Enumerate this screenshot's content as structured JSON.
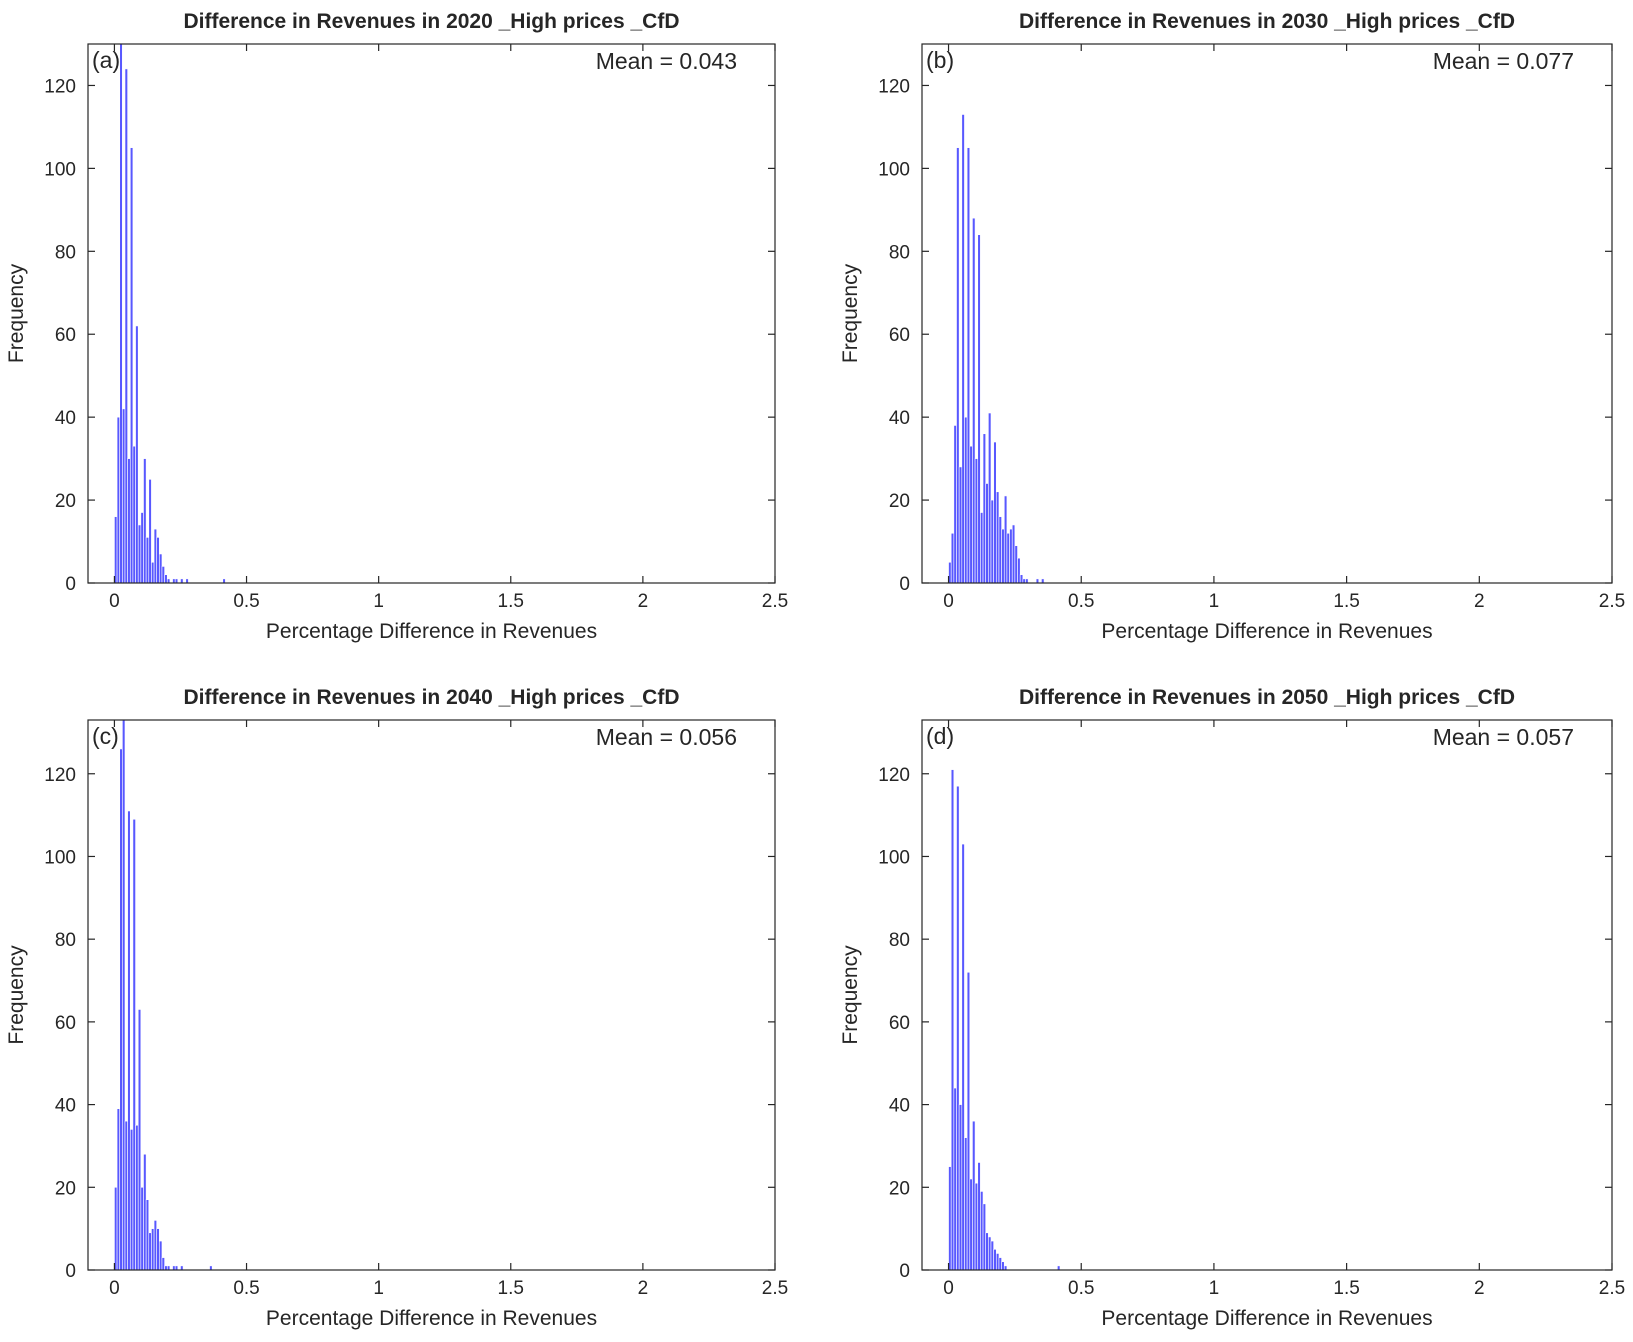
{
  "chart_data": [
    {
      "type": "bar",
      "panel_label": "(a)",
      "title": "Difference in Revenues in 2020 _High prices _CfD",
      "annotation": "Mean = 0.043",
      "xlabel": "Percentage Difference in Revenues",
      "ylabel": "Frequency",
      "xlim": [
        -0.1,
        2.5
      ],
      "ylim": [
        0,
        130
      ],
      "xticks": [
        "0",
        "0.5",
        "1",
        "1.5",
        "2",
        "2.5"
      ],
      "yticks": [
        "0",
        "20",
        "40",
        "60",
        "80",
        "100",
        "120"
      ],
      "color": "#3333ff",
      "bin_start": 0,
      "bin_width": 0.01,
      "values": [
        16,
        40,
        130,
        42,
        124,
        30,
        105,
        33,
        62,
        14,
        17,
        30,
        11,
        25,
        5,
        13,
        11,
        7,
        4,
        2,
        1,
        0,
        1,
        1,
        0,
        1,
        0,
        1,
        0,
        0,
        0,
        0,
        0,
        0,
        0,
        0,
        0,
        0,
        0,
        0,
        0,
        1
      ]
    },
    {
      "type": "bar",
      "panel_label": "(b)",
      "title": "Difference in Revenues in 2030 _High prices _CfD",
      "annotation": "Mean = 0.077",
      "xlabel": "Percentage Difference in Revenues",
      "ylabel": "Frequency",
      "xlim": [
        -0.1,
        2.5
      ],
      "ylim": [
        0,
        130
      ],
      "xticks": [
        "0",
        "0.5",
        "1",
        "1.5",
        "2",
        "2.5"
      ],
      "yticks": [
        "0",
        "20",
        "40",
        "60",
        "80",
        "100",
        "120"
      ],
      "color": "#3333ff",
      "bin_start": 0,
      "bin_width": 0.01,
      "values": [
        5,
        12,
        38,
        105,
        28,
        113,
        40,
        105,
        33,
        88,
        30,
        84,
        17,
        36,
        24,
        41,
        20,
        34,
        22,
        16,
        13,
        21,
        12,
        13,
        14,
        9,
        6,
        2,
        1,
        1,
        0,
        0,
        0,
        1,
        0,
        1
      ]
    },
    {
      "type": "bar",
      "panel_label": "(c)",
      "title": "Difference in Revenues in 2040 _High prices _CfD",
      "annotation": "Mean = 0.056",
      "xlabel": "Percentage Difference in Revenues",
      "ylabel": "Frequency",
      "xlim": [
        -0.1,
        2.5
      ],
      "ylim": [
        0,
        133
      ],
      "xticks": [
        "0",
        "0.5",
        "1",
        "1.5",
        "2",
        "2.5"
      ],
      "yticks": [
        "0",
        "20",
        "40",
        "60",
        "80",
        "100",
        "120"
      ],
      "color": "#3333ff",
      "bin_start": 0,
      "bin_width": 0.01,
      "values": [
        20,
        39,
        126,
        133,
        36,
        111,
        34,
        109,
        35,
        63,
        20,
        28,
        17,
        9,
        10,
        12,
        10,
        7,
        3,
        1,
        1,
        0,
        1,
        1,
        0,
        1,
        0,
        0,
        0,
        0,
        0,
        0,
        0,
        0,
        0,
        0,
        1
      ]
    },
    {
      "type": "bar",
      "panel_label": "(d)",
      "title": "Difference in Revenues in 2050 _High prices _CfD",
      "annotation": "Mean = 0.057",
      "xlabel": "Percentage Difference in Revenues",
      "ylabel": "Frequency",
      "xlim": [
        -0.1,
        2.5
      ],
      "ylim": [
        0,
        133
      ],
      "xticks": [
        "0",
        "0.5",
        "1",
        "1.5",
        "2",
        "2.5"
      ],
      "yticks": [
        "0",
        "20",
        "40",
        "60",
        "80",
        "100",
        "120"
      ],
      "color": "#3333ff",
      "bin_start": 0,
      "bin_width": 0.01,
      "values": [
        25,
        121,
        44,
        117,
        40,
        103,
        32,
        72,
        22,
        36,
        21,
        26,
        19,
        16,
        9,
        8,
        7,
        5,
        4,
        3,
        2,
        1,
        0,
        0,
        0,
        0,
        0,
        0,
        0,
        0,
        0,
        0,
        0,
        0,
        0,
        0,
        0,
        0,
        0,
        0,
        0,
        1
      ]
    }
  ]
}
